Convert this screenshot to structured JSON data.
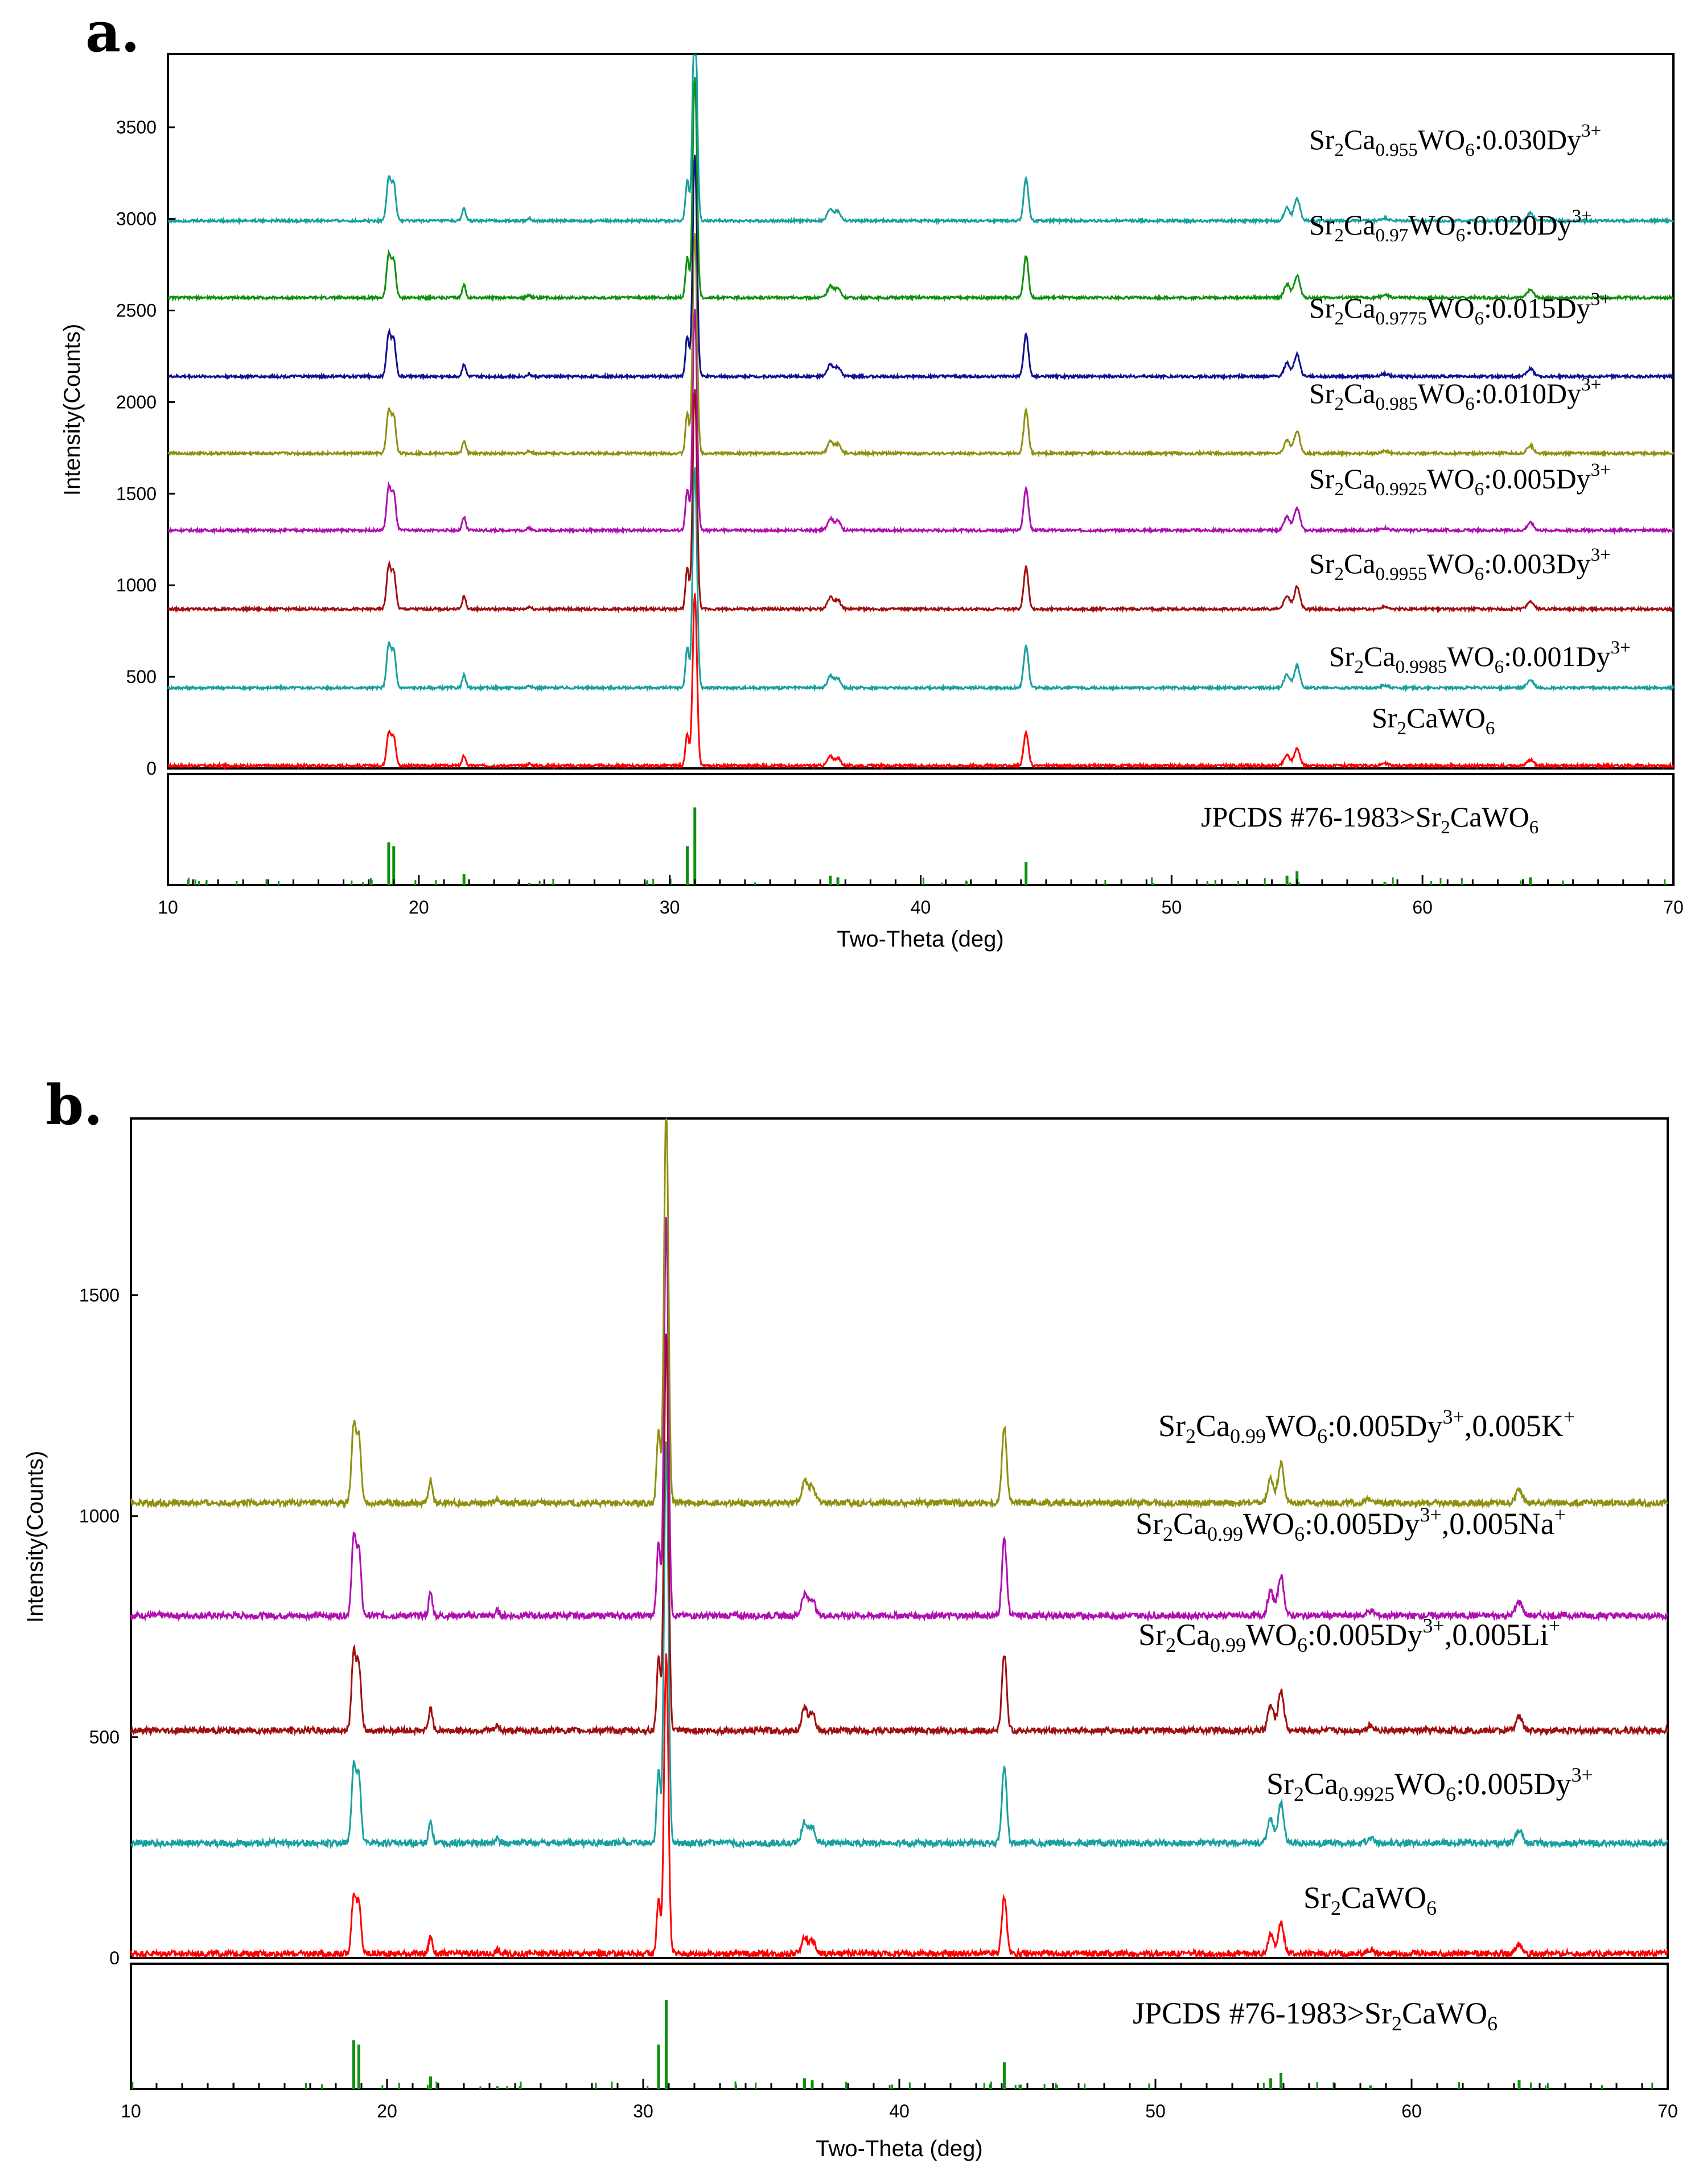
{
  "chart_data": [
    {
      "panel": "a.",
      "type": "line",
      "xlabel": "Two-Theta (deg)",
      "ylabel": "Intensity(Counts)",
      "xlim": [
        10,
        70
      ],
      "ylim": [
        0,
        3900
      ],
      "xticks": [
        10,
        20,
        30,
        40,
        50,
        60,
        70
      ],
      "yticks": [
        0,
        500,
        1000,
        1500,
        2000,
        2500,
        3000,
        3500
      ],
      "peak_positions_deg": [
        18.8,
        19.0,
        21.8,
        24.4,
        30.7,
        31.0,
        36.4,
        36.7,
        44.2,
        54.6,
        55.0,
        58.5,
        64.3
      ],
      "series": [
        {
          "name": "Sr2CaWO6",
          "label": {
            "base1": "Sr",
            "s1": "2",
            "base2": "CaWO",
            "s2": "6"
          },
          "color": "#ff0000",
          "baseline": 15,
          "scale": 0.62
        },
        {
          "name": "Sr2Ca0.9985WO6:0.001Dy3+",
          "label": {
            "base1": "Sr",
            "s1": "2",
            "base2": "Ca",
            "s2": "0.9985",
            "base3": "WO",
            "s3": "6",
            "tail": ":0.001Dy",
            "sup": "3+"
          },
          "color": "#19a0a0",
          "baseline": 440,
          "scale": 0.8
        },
        {
          "name": "Sr2Ca0.9955WO6:0.003Dy3+",
          "label": {
            "base1": "Sr",
            "s1": "2",
            "base2": "Ca",
            "s2": "0.9955",
            "base3": "WO",
            "s3": "6",
            "tail": ":0.003Dy",
            "sup": "3+"
          },
          "color": "#a01010",
          "baseline": 870,
          "scale": 0.8
        },
        {
          "name": "Sr2Ca0.9925WO6:0.005Dy3+",
          "label": {
            "base1": "Sr",
            "s1": "2",
            "base2": "Ca",
            "s2": "0.9925",
            "base3": "WO",
            "s3": "6",
            "tail": ":0.005Dy",
            "sup": "3+"
          },
          "color": "#b010b0",
          "baseline": 1300,
          "scale": 0.8
        },
        {
          "name": "Sr2Ca0.985WO6:0.010Dy3+",
          "label": {
            "base1": "Sr",
            "s1": "2",
            "base2": "Ca",
            "s2": "0.985",
            "base3": "WO",
            "s3": "6",
            "tail": ":0.010Dy",
            "sup": "3+"
          },
          "color": "#909010",
          "baseline": 1720,
          "scale": 0.8
        },
        {
          "name": "Sr2Ca0.9775WO6:0.015Dy3+",
          "label": {
            "base1": "Sr",
            "s1": "2",
            "base2": "Ca",
            "s2": "0.9775",
            "base3": "WO",
            "s3": "6",
            "tail": ":0.015Dy",
            "sup": "3+"
          },
          "color": "#101090",
          "baseline": 2140,
          "scale": 0.8
        },
        {
          "name": "Sr2Ca0.97WO6:0.020Dy3+",
          "label": {
            "base1": "Sr",
            "s1": "2",
            "base2": "Ca",
            "s2": "0.97",
            "base3": "WO",
            "s3": "6",
            "tail": ":0.020Dy",
            "sup": "3+"
          },
          "color": "#109010",
          "baseline": 2570,
          "scale": 0.8
        },
        {
          "name": "Sr2Ca0.955WO6:0.030Dy3+",
          "label": {
            "base1": "Sr",
            "s1": "2",
            "base2": "Ca",
            "s2": "0.955",
            "base3": "WO",
            "s3": "6",
            "tail": ":0.030Dy",
            "sup": "3+"
          },
          "color": "#19a0a0",
          "baseline": 2990,
          "scale": 0.8
        }
      ],
      "reference": {
        "label": {
          "pre": "JPCDS #76-1983>Sr",
          "s1": "2",
          "base2": "CaWO",
          "s2": "6"
        },
        "color": "#109010"
      }
    },
    {
      "panel": "b.",
      "type": "line",
      "xlabel": "Two-Theta (deg)",
      "ylabel": "Intensity(Counts)",
      "xlim": [
        10,
        70
      ],
      "ylim": [
        0,
        1900
      ],
      "xticks": [
        10,
        20,
        30,
        40,
        50,
        60,
        70
      ],
      "yticks": [
        0,
        500,
        1000,
        1500
      ],
      "peak_positions_deg": [
        18.7,
        18.9,
        21.7,
        24.3,
        30.6,
        30.9,
        36.3,
        36.6,
        44.1,
        54.5,
        54.9,
        58.4,
        64.2
      ],
      "series": [
        {
          "name": "Sr2CaWO6",
          "label": {
            "base1": "Sr",
            "s1": "2",
            "base2": "CaWO",
            "s2": "6"
          },
          "color": "#ff0000",
          "baseline": 10,
          "scale": 0.45
        },
        {
          "name": "Sr2Ca0.9925WO6:0.005Dy3+",
          "label": {
            "base1": "Sr",
            "s1": "2",
            "base2": "Ca",
            "s2": "0.9925",
            "base3": "WO",
            "s3": "6",
            "tail": ":0.005Dy",
            "sup": "3+"
          },
          "color": "#19a0a0",
          "baseline": 260,
          "scale": 0.6
        },
        {
          "name": "Sr2Ca0.99WO6:0.005Dy3+,0.005Li+",
          "label": {
            "base1": "Sr",
            "s1": "2",
            "base2": "Ca",
            "s2": "0.99",
            "base3": "WO",
            "s3": "6",
            "tail": ":0.005Dy",
            "sup": "3+",
            "tail2": ",0.005Li",
            "sup2": "+"
          },
          "color": "#a01010",
          "baseline": 515,
          "scale": 0.6
        },
        {
          "name": "Sr2Ca0.99WO6:0.005Dy3+,0.005Na+",
          "label": {
            "base1": "Sr",
            "s1": "2",
            "base2": "Ca",
            "s2": "0.99",
            "base3": "WO",
            "s3": "6",
            "tail": ":0.005Dy",
            "sup": "3+",
            "tail2": ",0.005Na",
            "sup2": "+"
          },
          "color": "#b010b0",
          "baseline": 775,
          "scale": 0.6
        },
        {
          "name": "Sr2Ca0.99WO6:0.005Dy3+,0.005K+",
          "label": {
            "base1": "Sr",
            "s1": "2",
            "base2": "Ca",
            "s2": "0.99",
            "base3": "WO",
            "s3": "6",
            "tail": ":0.005Dy",
            "sup": "3+",
            "tail2": ",0.005K",
            "sup2": "+"
          },
          "color": "#909010",
          "baseline": 1030,
          "scale": 0.6
        }
      ],
      "reference": {
        "label": {
          "pre": "JPCDS #76-1983>Sr",
          "s1": "2",
          "base2": "CaWO",
          "s2": "6"
        },
        "color": "#109010"
      }
    }
  ]
}
